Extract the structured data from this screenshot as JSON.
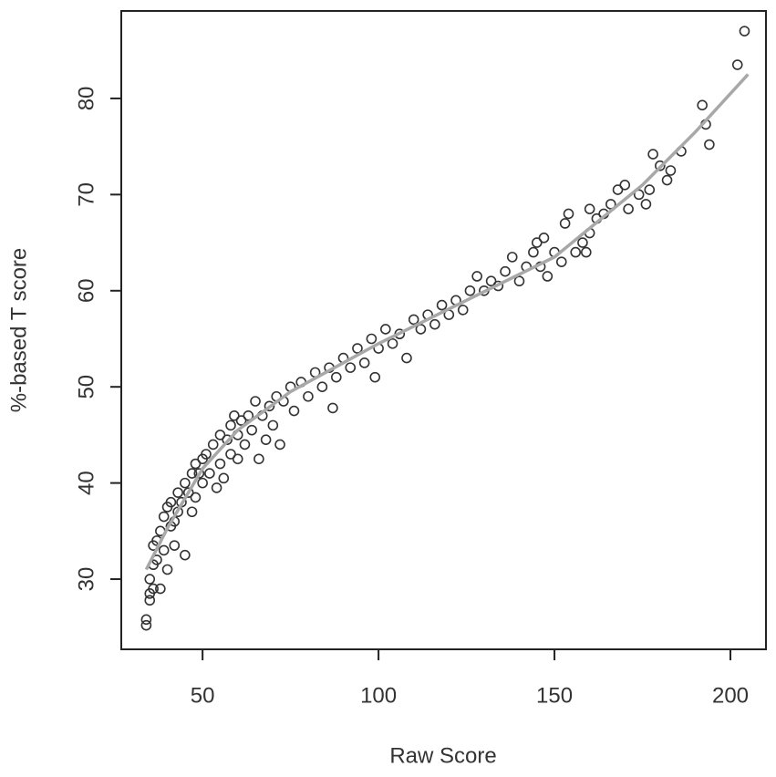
{
  "chart_data": {
    "type": "scatter",
    "xlabel": "Raw Score",
    "ylabel": "%-based T score",
    "xlim": [
      26.9,
      210.1
    ],
    "ylim": [
      22.7,
      89.1
    ],
    "xticks": [
      50,
      100,
      150,
      200
    ],
    "yticks": [
      30,
      40,
      50,
      60,
      70,
      80
    ],
    "series": [
      {
        "color": "#333333",
        "x": [
          34,
          34,
          35,
          35,
          35,
          36,
          36,
          36,
          37,
          37,
          38,
          38,
          39,
          39,
          40,
          40,
          41,
          41,
          42,
          42,
          43,
          43,
          44,
          45,
          45,
          46,
          47,
          47,
          48,
          48,
          49,
          50,
          50,
          51,
          52,
          53,
          54,
          55,
          55,
          56,
          57,
          58,
          58,
          59,
          60,
          60,
          61,
          62,
          63,
          64,
          65,
          66,
          67,
          68,
          69,
          70,
          71,
          72,
          73,
          75,
          76,
          78,
          80,
          82,
          84,
          86,
          87,
          88,
          90,
          92,
          94,
          96,
          98,
          99,
          100,
          102,
          104,
          106,
          108,
          110,
          112,
          114,
          116,
          118,
          120,
          122,
          124,
          126,
          128,
          130,
          132,
          134,
          136,
          138,
          140,
          142,
          144,
          145,
          146,
          147,
          148,
          150,
          152,
          153,
          154,
          156,
          158,
          159,
          160,
          160,
          162,
          164,
          166,
          168,
          170,
          171,
          174,
          176,
          177,
          178,
          180,
          182,
          183,
          186,
          192,
          193,
          194,
          202,
          204
        ],
        "values": [
          25.2,
          25.8,
          27.8,
          28.5,
          30,
          29,
          31.5,
          33.5,
          32,
          34,
          29,
          35,
          36.5,
          33,
          31,
          37.5,
          35.5,
          38,
          36,
          33.5,
          39,
          37,
          38,
          32.5,
          40,
          39,
          41,
          37,
          42,
          38.5,
          41,
          42.5,
          40,
          43,
          41,
          44,
          39.5,
          42,
          45,
          40.5,
          44.5,
          46,
          43,
          47,
          45,
          42.5,
          46.5,
          44,
          47,
          45.5,
          48.5,
          42.5,
          47,
          44.5,
          48,
          46,
          49,
          44,
          48.5,
          50,
          47.5,
          50.5,
          49,
          51.5,
          50,
          52,
          47.8,
          51,
          53,
          52,
          54,
          52.5,
          55,
          51,
          54,
          56,
          54.5,
          55.5,
          53,
          57,
          56,
          57.5,
          56.5,
          58.5,
          57.5,
          59,
          58,
          60,
          61.5,
          60,
          61,
          60.5,
          62,
          63.5,
          61,
          62.5,
          64,
          65,
          62.5,
          65.5,
          61.5,
          64,
          63,
          67,
          68,
          64,
          65,
          64,
          66,
          68.5,
          67.5,
          68,
          69,
          70.5,
          71,
          68.5,
          70,
          69,
          70.5,
          74.2,
          73,
          71.5,
          72.5,
          74.5,
          79.3,
          77.3,
          75.2,
          83.5,
          87
        ]
      },
      {
        "type": "line",
        "color": "#a8a8a8",
        "x": [
          34,
          40,
          50,
          60,
          75,
          100,
          125,
          150,
          175,
          190,
          205
        ],
        "values": [
          31,
          35.3,
          41.5,
          45.5,
          49.5,
          54.5,
          59,
          63.5,
          71,
          76.5,
          82.5
        ]
      }
    ]
  }
}
